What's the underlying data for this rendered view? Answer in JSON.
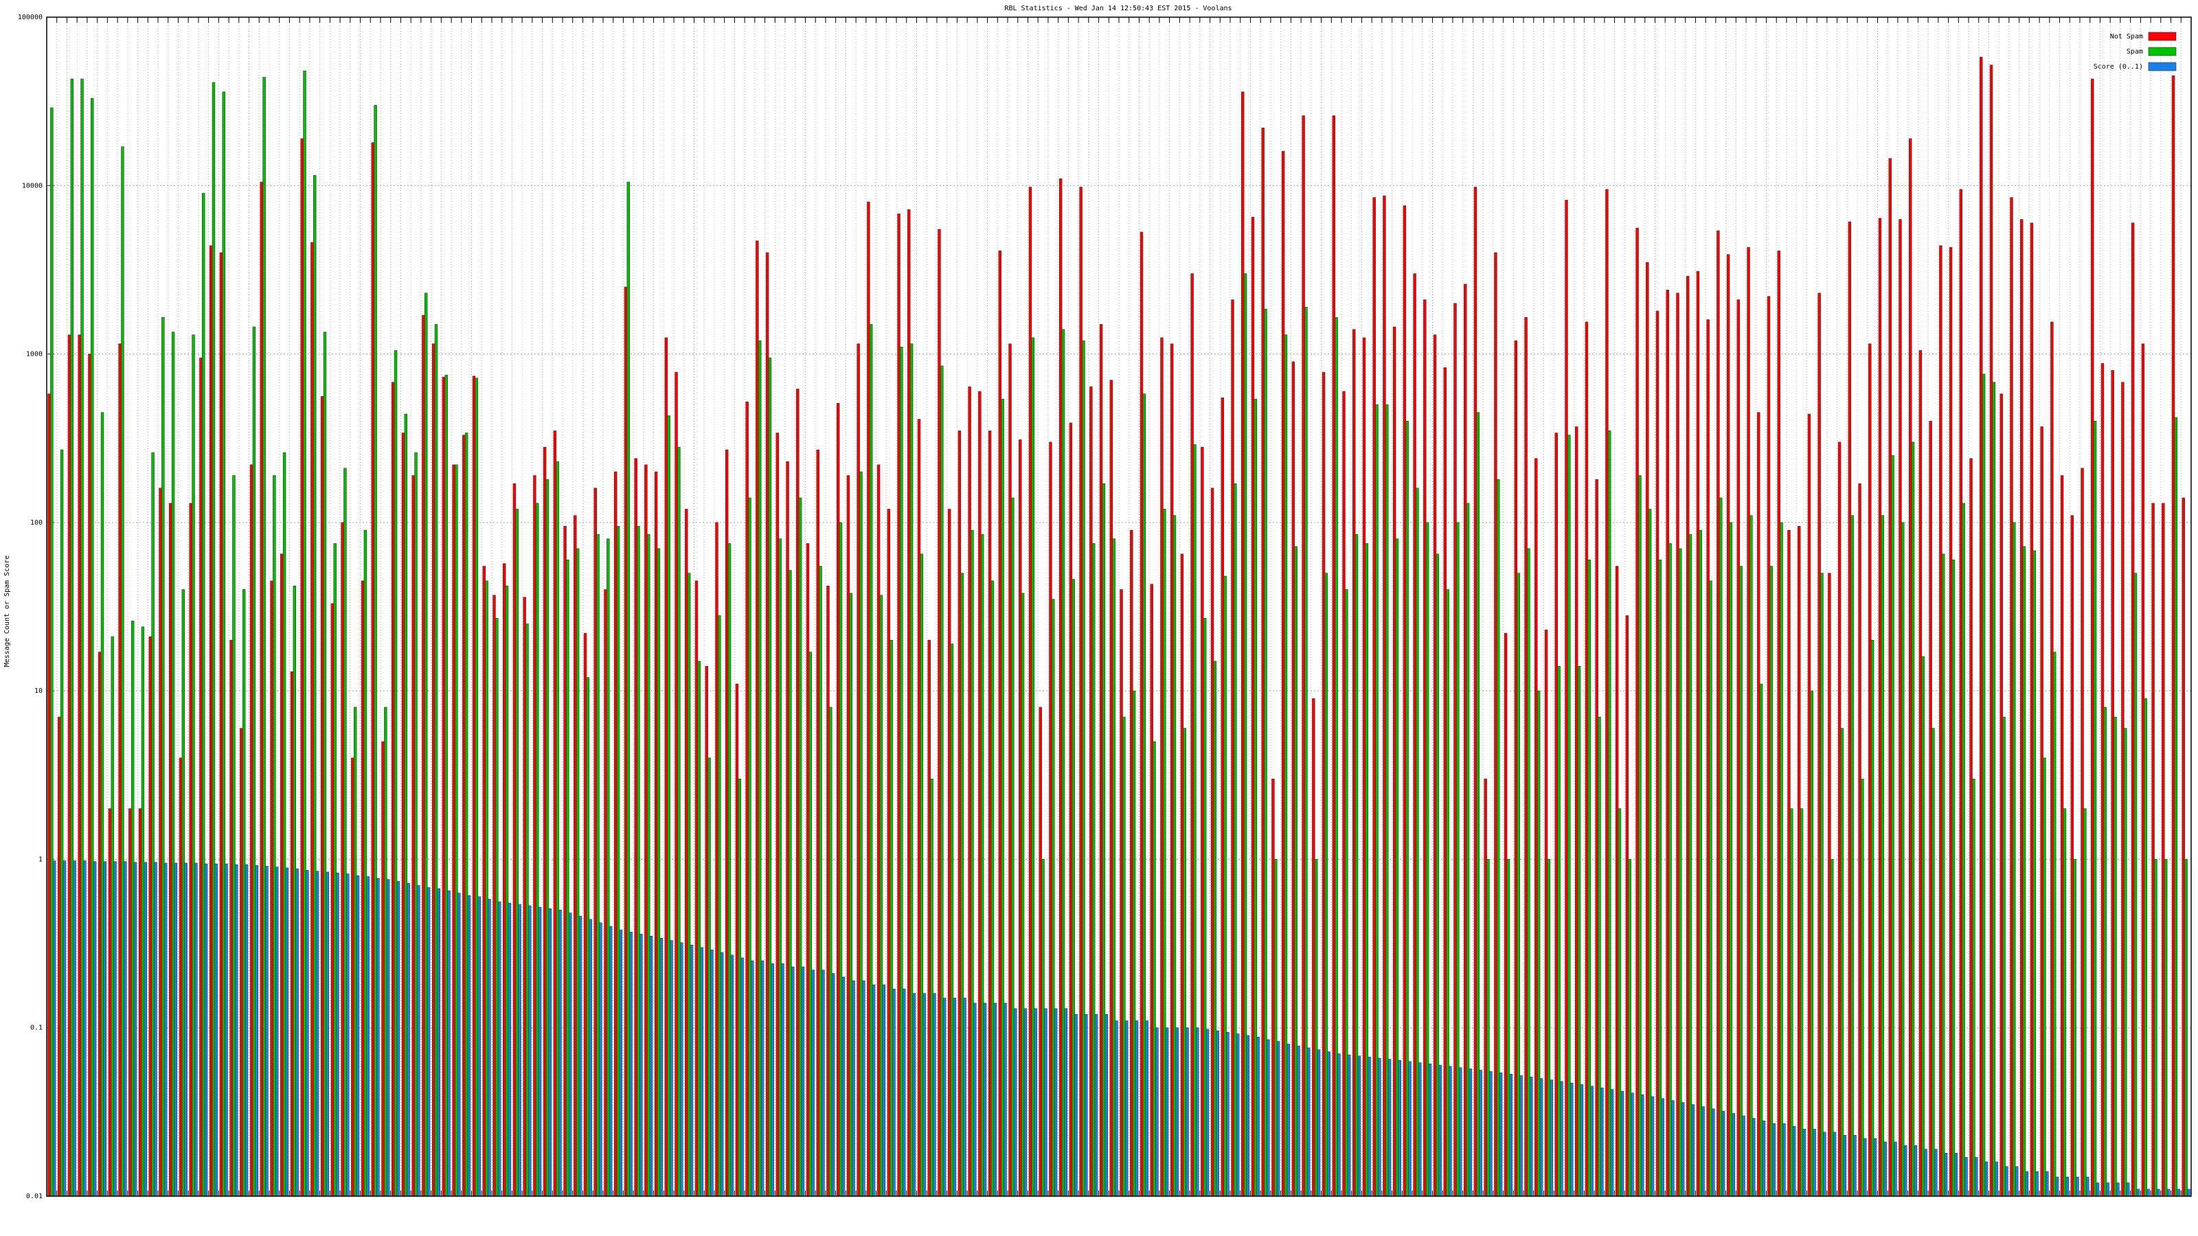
{
  "chart_data": {
    "type": "bar",
    "title": "RBL Statistics - Wed Jan 14 12:50:43 EST 2015 - Voolans",
    "y_label": "Message Count or Spam Score",
    "log_y": true,
    "grid": true,
    "legend": "upper right",
    "ylim": [
      0.01,
      100000
    ],
    "yticks": [
      100000,
      10000,
      1000,
      100,
      10,
      1,
      0.1,
      0.01
    ],
    "categories": [
      null,
      null,
      null,
      null,
      null,
      null,
      null,
      null,
      null,
      null,
      null,
      null,
      null,
      null,
      null,
      null,
      null,
      null,
      null,
      null,
      null,
      null,
      null,
      null,
      null,
      null,
      null,
      null,
      null,
      null,
      null,
      null,
      null,
      null,
      null,
      null,
      null,
      null,
      null,
      null,
      null,
      null,
      null,
      null,
      null,
      null,
      null,
      null,
      null,
      null,
      null,
      null,
      null,
      null,
      null,
      null,
      null,
      null,
      null,
      null,
      null,
      null,
      null,
      null,
      null,
      null,
      null,
      null,
      null,
      null,
      null,
      null,
      null,
      null,
      null,
      null,
      null,
      null,
      null,
      null,
      null,
      null,
      null,
      null,
      null,
      null,
      null,
      null,
      null,
      null,
      null,
      null,
      null,
      null,
      null,
      null,
      null,
      null,
      null,
      null,
      null,
      null,
      null,
      null,
      null,
      null,
      null,
      null,
      null,
      null,
      null,
      null,
      null,
      null,
      null,
      null,
      null,
      null,
      null,
      null,
      null,
      null,
      null,
      null,
      null,
      null,
      null,
      null,
      null,
      null,
      null,
      null,
      null,
      null,
      null,
      null,
      null,
      null,
      null,
      null,
      null,
      null,
      null,
      null,
      null,
      null,
      null,
      null,
      null,
      null,
      null,
      null,
      null,
      null,
      null,
      null,
      null,
      null,
      null,
      null,
      null,
      null,
      null,
      null,
      null,
      null,
      null,
      null,
      null,
      null,
      null,
      null,
      null,
      null,
      null,
      null,
      null,
      null,
      null,
      null,
      null,
      null,
      null,
      null,
      null,
      null,
      null,
      null,
      null,
      null,
      null,
      null,
      null,
      null,
      null,
      null,
      null,
      null,
      null,
      null,
      null,
      null,
      null,
      null,
      null,
      null,
      null,
      null,
      null,
      null,
      null,
      null
    ],
    "series": [
      {
        "name": "Not Spam",
        "color": "#ff0000",
        "values": [
          580,
          7,
          1300,
          1300,
          1000,
          17,
          2,
          1150,
          2,
          2,
          21,
          160,
          130,
          4,
          130,
          950,
          4400,
          4000,
          20,
          6,
          220,
          10500,
          45,
          65,
          13,
          19000,
          4600,
          560,
          33,
          100,
          4,
          45,
          18000,
          5,
          680,
          340,
          190,
          1700,
          1150,
          730,
          220,
          330,
          740,
          55,
          37,
          57,
          170,
          36,
          190,
          280,
          350,
          95,
          110,
          22,
          160,
          40,
          200,
          2500,
          240,
          220,
          200,
          1250,
          780,
          120,
          45,
          14,
          100,
          270,
          11,
          520,
          4700,
          4000,
          340,
          230,
          620,
          75,
          270,
          42,
          510,
          190,
          1150,
          8000,
          220,
          120,
          6800,
          7200,
          410,
          20,
          5500,
          120,
          350,
          640,
          600,
          350,
          4100,
          1150,
          310,
          9800,
          8,
          300,
          11000,
          390,
          9800,
          640,
          1500,
          700,
          40,
          90,
          5300,
          43,
          1250,
          1150,
          65,
          3000,
          280,
          160,
          550,
          2100,
          36000,
          6500,
          22000,
          3,
          16000,
          900,
          26000,
          9,
          780,
          26000,
          600,
          1400,
          1250,
          8500,
          8700,
          1450,
          7600,
          3000,
          2100,
          1300,
          830,
          2000,
          2600,
          9800,
          3,
          4000,
          22,
          1200,
          1650,
          240,
          23,
          340,
          8200,
          370,
          1550,
          180,
          9500,
          55,
          28,
          5600,
          3500,
          1800,
          2400,
          2300,
          2900,
          3100,
          1600,
          5400,
          3900,
          2100,
          4300,
          450,
          2200,
          4100,
          90,
          95,
          440,
          2300,
          50,
          300,
          6100,
          170,
          1150,
          6400,
          14500,
          6300,
          19000,
          1050,
          400,
          4400,
          4300,
          9500,
          240,
          58000,
          52000,
          580,
          8500,
          6300,
          6000,
          370,
          1550,
          190,
          110,
          210,
          43000,
          880,
          800,
          680,
          6000,
          1150,
          130,
          130,
          45000,
          140
        ]
      },
      {
        "name": "Spam",
        "color": "#00c000",
        "values": [
          29000,
          270,
          43000,
          43000,
          33000,
          450,
          21,
          17000,
          26,
          24,
          260,
          1650,
          1350,
          40,
          1300,
          9000,
          41000,
          36000,
          190,
          40,
          1450,
          44000,
          190,
          260,
          42,
          48000,
          11500,
          1350,
          75,
          210,
          8,
          90,
          30000,
          8,
          1050,
          440,
          260,
          2300,
          1500,
          750,
          220,
          340,
          720,
          45,
          27,
          42,
          120,
          25,
          130,
          180,
          230,
          60,
          70,
          12,
          85,
          80,
          95,
          10500,
          95,
          85,
          70,
          430,
          280,
          50,
          15,
          4,
          28,
          75,
          3,
          140,
          1200,
          950,
          80,
          52,
          140,
          17,
          55,
          8,
          100,
          38,
          200,
          1500,
          37,
          20,
          1100,
          1150,
          65,
          3,
          850,
          19,
          50,
          90,
          85,
          45,
          540,
          140,
          38,
          1250,
          1,
          35,
          1400,
          46,
          1200,
          75,
          170,
          80,
          7,
          10,
          580,
          5,
          120,
          110,
          6,
          290,
          27,
          15,
          48,
          170,
          3000,
          540,
          1850,
          1,
          1300,
          72,
          1900,
          1,
          50,
          1650,
          40,
          85,
          75,
          500,
          500,
          80,
          400,
          160,
          100,
          65,
          40,
          100,
          130,
          450,
          1,
          180,
          1,
          50,
          70,
          10,
          1,
          14,
          330,
          14,
          60,
          7,
          350,
          2,
          1,
          190,
          120,
          60,
          75,
          70,
          85,
          90,
          45,
          140,
          100,
          55,
          110,
          11,
          55,
          100,
          2,
          2,
          10,
          50,
          1,
          6,
          110,
          3,
          20,
          110,
          250,
          100,
          300,
          16,
          6,
          65,
          60,
          130,
          3,
          760,
          680,
          7,
          100,
          72,
          68,
          4,
          17,
          2,
          1,
          2,
          400,
          8,
          7,
          6,
          50,
          9,
          1,
          1,
          420,
          1
        ]
      },
      {
        "name": "Score (0..1)",
        "color": "#1a80e6",
        "values": [
          0.98,
          0.98,
          0.98,
          0.98,
          0.97,
          0.97,
          0.97,
          0.97,
          0.96,
          0.96,
          0.96,
          0.95,
          0.95,
          0.95,
          0.95,
          0.94,
          0.94,
          0.94,
          0.93,
          0.93,
          0.92,
          0.91,
          0.9,
          0.89,
          0.88,
          0.86,
          0.85,
          0.84,
          0.83,
          0.82,
          0.8,
          0.79,
          0.77,
          0.76,
          0.74,
          0.72,
          0.7,
          0.68,
          0.67,
          0.65,
          0.63,
          0.61,
          0.6,
          0.58,
          0.56,
          0.55,
          0.54,
          0.53,
          0.52,
          0.51,
          0.5,
          0.48,
          0.46,
          0.44,
          0.42,
          0.4,
          0.38,
          0.37,
          0.36,
          0.35,
          0.34,
          0.33,
          0.32,
          0.31,
          0.3,
          0.29,
          0.28,
          0.27,
          0.26,
          0.25,
          0.25,
          0.24,
          0.24,
          0.23,
          0.23,
          0.22,
          0.22,
          0.21,
          0.2,
          0.19,
          0.19,
          0.18,
          0.18,
          0.17,
          0.17,
          0.16,
          0.16,
          0.16,
          0.15,
          0.15,
          0.15,
          0.14,
          0.14,
          0.14,
          0.14,
          0.13,
          0.13,
          0.13,
          0.13,
          0.13,
          0.13,
          0.12,
          0.12,
          0.12,
          0.12,
          0.11,
          0.11,
          0.11,
          0.11,
          0.1,
          0.1,
          0.1,
          0.1,
          0.1,
          0.098,
          0.096,
          0.094,
          0.092,
          0.09,
          0.088,
          0.085,
          0.083,
          0.08,
          0.078,
          0.076,
          0.074,
          0.072,
          0.07,
          0.069,
          0.068,
          0.067,
          0.066,
          0.065,
          0.064,
          0.063,
          0.062,
          0.061,
          0.06,
          0.059,
          0.058,
          0.057,
          0.056,
          0.055,
          0.054,
          0.053,
          0.052,
          0.051,
          0.05,
          0.049,
          0.048,
          0.047,
          0.046,
          0.045,
          0.044,
          0.043,
          0.042,
          0.041,
          0.04,
          0.039,
          0.038,
          0.037,
          0.036,
          0.035,
          0.034,
          0.033,
          0.032,
          0.031,
          0.03,
          0.029,
          0.028,
          0.027,
          0.027,
          0.026,
          0.025,
          0.025,
          0.024,
          0.024,
          0.023,
          0.023,
          0.022,
          0.022,
          0.021,
          0.021,
          0.02,
          0.02,
          0.019,
          0.019,
          0.018,
          0.018,
          0.017,
          0.017,
          0.016,
          0.016,
          0.015,
          0.015,
          0.014,
          0.014,
          0.014,
          0.013,
          0.013,
          0.013,
          0.013,
          0.012,
          0.012,
          0.012,
          0.012,
          0.011,
          0.011,
          0.011,
          0.011,
          0.011,
          0.011
        ]
      }
    ]
  }
}
